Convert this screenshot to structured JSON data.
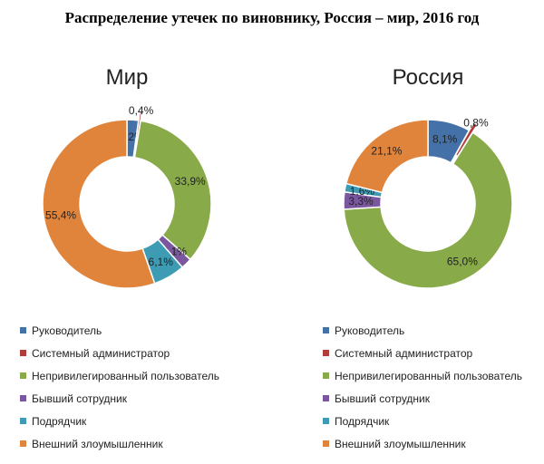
{
  "title": "Распределение утечек по виновнику, Россия – мир, 2016 год",
  "chart_data": [
    {
      "type": "donut",
      "title": "Мир",
      "categories": [
        "Руководитель",
        "Системный администратор",
        "Непривилегированный пользователь",
        "Бывший сотрудник",
        "Подрядчик",
        "Внешний злоумышленник"
      ],
      "values": [
        2.2,
        0.4,
        33.9,
        2.1,
        6.1,
        55.4
      ],
      "labels": [
        "2,2%",
        "0,4%",
        "33,9%",
        "2,1%",
        "6,1%",
        "55,4%"
      ],
      "exploded": [
        "Системный администратор"
      ],
      "legend_position": "bottom"
    },
    {
      "type": "donut",
      "title": "Россия",
      "categories": [
        "Руководитель",
        "Системный администратор",
        "Непривилегированный пользователь",
        "Бывший сотрудник",
        "Подрядчик",
        "Внешний злоумышленник"
      ],
      "values": [
        8.1,
        0.8,
        65.0,
        3.3,
        1.6,
        21.1
      ],
      "labels": [
        "8,1%",
        "0,8%",
        "65,0%",
        "3,3%",
        "1,6%",
        "21,1%"
      ],
      "exploded": [
        "Системный администратор"
      ],
      "legend_position": "bottom"
    }
  ],
  "colors": [
    "#4472a8",
    "#b03c3c",
    "#88aa48",
    "#7b57a0",
    "#3d9bb4",
    "#e0843c"
  ]
}
